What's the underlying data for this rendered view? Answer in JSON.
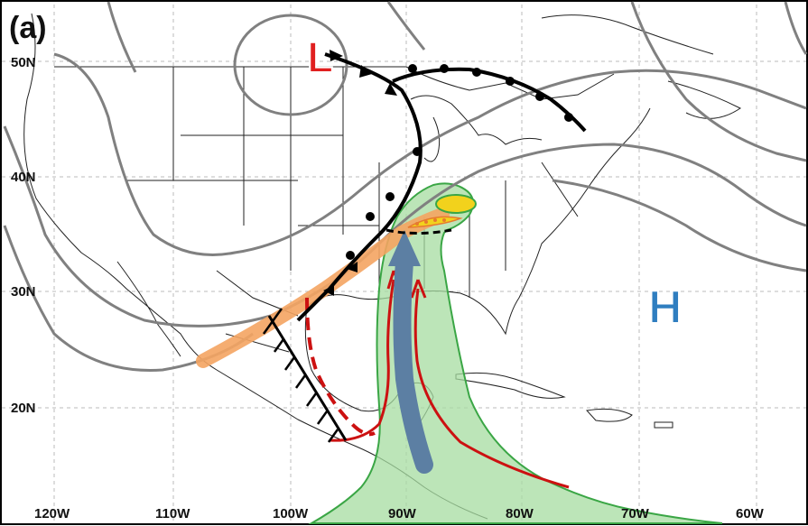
{
  "panel_label": "(a)",
  "pressure_centers": {
    "low": "L",
    "high": "H"
  },
  "latitude_labels": [
    "50N",
    "40N",
    "30N",
    "20N"
  ],
  "longitude_labels": [
    "120W",
    "110W",
    "100W",
    "90W",
    "80W",
    "70W",
    "60W"
  ],
  "colors": {
    "low_label": "#e02020",
    "high_label": "#2f7ec0",
    "front": "#000000",
    "isobar": "#808080",
    "orange_band": "#f4a462",
    "moisture_plume": "#a6dca0",
    "moisture_edge": "#3aa645",
    "red_arrows": "#cc1111",
    "blue_arrow": "#5c7fa3",
    "yellow_blob": "#f2d21c",
    "grid": "#bbbbbb",
    "map_lines": "#222222"
  }
}
